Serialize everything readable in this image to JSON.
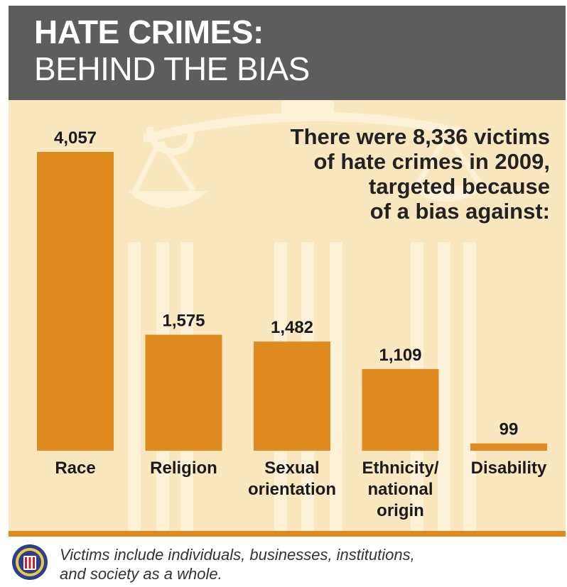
{
  "header": {
    "title_line1": "HATE CRIMES:",
    "title_line2": "BEHIND THE BIAS"
  },
  "note": {
    "line1": "There were 8,336 victims",
    "line2": "of hate crimes in 2009,",
    "line3": "targeted because",
    "line4": "of a bias against:"
  },
  "footer": {
    "text_line1": "Victims include individuals, businesses, institutions,",
    "text_line2": "and society as a whole.",
    "badge_icon": "fbi-seal-icon"
  },
  "colors": {
    "header_bg": "#5d5d5d",
    "panel_bg": "#fbe7bf",
    "bar": "#e08b20",
    "text": "#1a1a1a"
  },
  "chart_data": {
    "type": "bar",
    "title": "",
    "xlabel": "",
    "ylabel": "",
    "ylim": [
      0,
      4057
    ],
    "grid": false,
    "categories": [
      [
        "Race"
      ],
      [
        "Religion"
      ],
      [
        "Sexual",
        "orientation"
      ],
      [
        "Ethnicity/",
        "national",
        "origin"
      ],
      [
        "Disability"
      ]
    ],
    "values": [
      4057,
      1575,
      1482,
      1109,
      99
    ],
    "value_labels": [
      "4,057",
      "1,575",
      "1,482",
      "1,109",
      "99"
    ]
  }
}
